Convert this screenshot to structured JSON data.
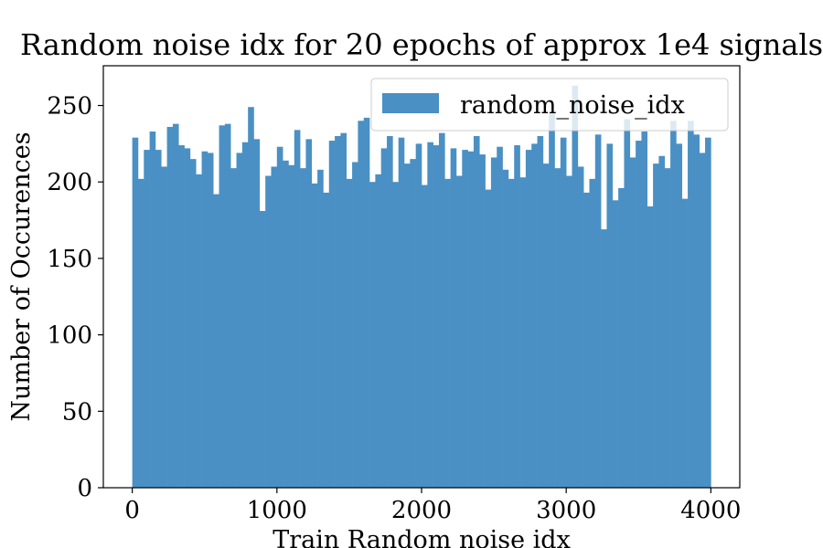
{
  "chart_data": {
    "type": "bar",
    "subtype": "histogram",
    "title": "Random noise idx for 20 epochs of approx 1e4 signals",
    "xlabel": "Train Random noise idx",
    "ylabel": "Number of Occurences",
    "xlim": [
      -200,
      4200
    ],
    "ylim": [
      0,
      276
    ],
    "xticks": [
      0,
      1000,
      2000,
      3000,
      4000
    ],
    "yticks": [
      0,
      50,
      100,
      150,
      200,
      250
    ],
    "legend": {
      "position": "upper right",
      "entries": [
        "random_noise_idx"
      ]
    },
    "grid": false,
    "color": "#4a90c4",
    "bins": {
      "start": 0,
      "end": 4000,
      "count": 100
    },
    "series": [
      {
        "name": "random_noise_idx",
        "values": [
          229,
          202,
          221,
          233,
          221,
          210,
          236,
          238,
          224,
          222,
          215,
          205,
          220,
          219,
          192,
          237,
          238,
          209,
          219,
          226,
          249,
          228,
          181,
          204,
          210,
          223,
          214,
          211,
          234,
          209,
          228,
          199,
          208,
          193,
          227,
          230,
          232,
          202,
          213,
          240,
          242,
          200,
          205,
          222,
          230,
          200,
          229,
          212,
          215,
          225,
          198,
          226,
          224,
          232,
          202,
          222,
          204,
          221,
          220,
          230,
          218,
          195,
          216,
          223,
          208,
          202,
          224,
          203,
          221,
          225,
          230,
          212,
          245,
          209,
          229,
          204,
          263,
          210,
          193,
          202,
          231,
          169,
          225,
          188,
          196,
          241,
          216,
          227,
          233,
          184,
          212,
          217,
          209,
          240,
          225,
          189,
          240,
          231,
          219,
          229
        ]
      }
    ]
  }
}
